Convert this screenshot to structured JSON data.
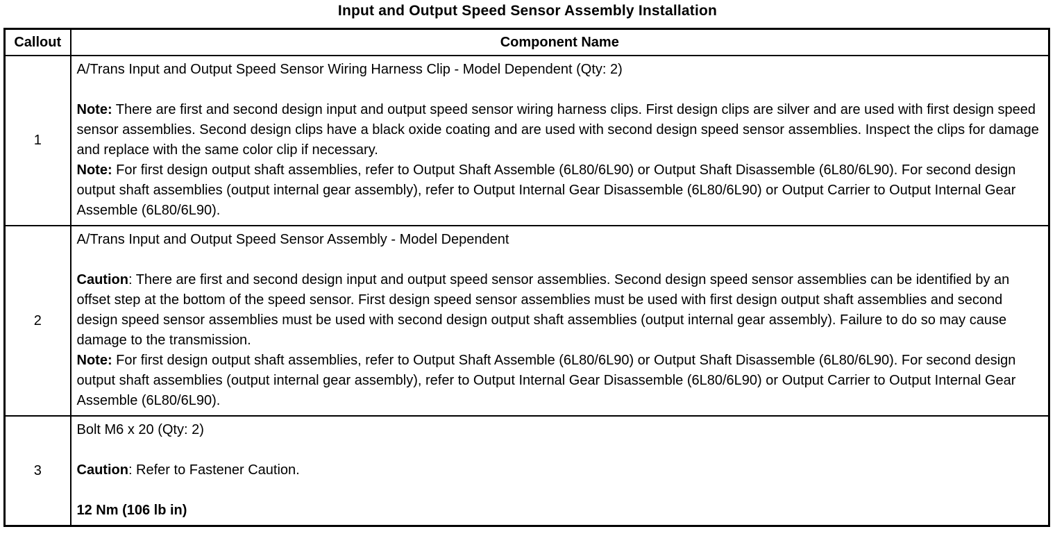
{
  "page": {
    "title": "Input and Output Speed Sensor Assembly Installation"
  },
  "colors": {
    "border": "#000000",
    "text": "#000000",
    "background": "#ffffff"
  },
  "table": {
    "headers": [
      "Callout",
      "Component Name"
    ],
    "rows": [
      {
        "callout": "1",
        "blocks": [
          {
            "runs": [
              {
                "b": false,
                "t": "A/Trans Input and Output Speed Sensor Wiring Harness Clip - Model Dependent (Qty: 2)"
              }
            ]
          },
          {
            "blank": true
          },
          {
            "runs": [
              {
                "b": true,
                "t": "Note:"
              },
              {
                "b": false,
                "t": " There are first and second design input and output speed sensor wiring harness clips. First design clips are silver and are used with first design speed sensor assemblies. Second design clips have a black oxide coating and are used with second design speed sensor assemblies. Inspect the clips for damage and replace with the same color clip if necessary."
              }
            ]
          },
          {
            "runs": [
              {
                "b": true,
                "t": "Note:"
              },
              {
                "b": false,
                "t": " For first design output shaft assemblies, refer to Output Shaft Assemble (6L80/6L90) or Output Shaft Disassemble (6L80/6L90). For second design output shaft assemblies (output internal gear assembly), refer to Output Internal Gear Disassemble (6L80/6L90) or Output Carrier to Output Internal Gear Assemble (6L80/6L90)."
              }
            ]
          }
        ]
      },
      {
        "callout": "2",
        "blocks": [
          {
            "runs": [
              {
                "b": false,
                "t": "A/Trans Input and Output Speed Sensor Assembly - Model Dependent"
              }
            ]
          },
          {
            "blank": true
          },
          {
            "runs": [
              {
                "b": true,
                "t": "Caution"
              },
              {
                "b": false,
                "t": ": There are first and second design input and output speed sensor assemblies. Second design speed sensor assemblies can be identified by an offset step at the bottom of the speed sensor. First design speed sensor assemblies must be used with first design output shaft assemblies and second design speed sensor assemblies must be used with second design output shaft assemblies (output internal gear assembly). Failure to do so may cause damage to the transmission."
              }
            ]
          },
          {
            "runs": [
              {
                "b": true,
                "t": "Note:"
              },
              {
                "b": false,
                "t": " For first design output shaft assemblies, refer to Output Shaft Assemble (6L80/6L90) or Output Shaft Disassemble (6L80/6L90). For second design output shaft assemblies (output internal gear assembly), refer to Output Internal Gear Disassemble (6L80/6L90) or Output Carrier to Output Internal Gear Assemble (6L80/6L90)."
              }
            ]
          }
        ]
      },
      {
        "callout": "3",
        "blocks": [
          {
            "runs": [
              {
                "b": false,
                "t": "Bolt M6 x 20 (Qty: 2)"
              }
            ]
          },
          {
            "blank": true
          },
          {
            "runs": [
              {
                "b": true,
                "t": "Caution"
              },
              {
                "b": false,
                "t": ": Refer to Fastener Caution."
              }
            ]
          },
          {
            "blank": true
          },
          {
            "runs": [
              {
                "b": true,
                "t": "12 Nm (106 lb in)"
              }
            ]
          }
        ]
      }
    ]
  }
}
